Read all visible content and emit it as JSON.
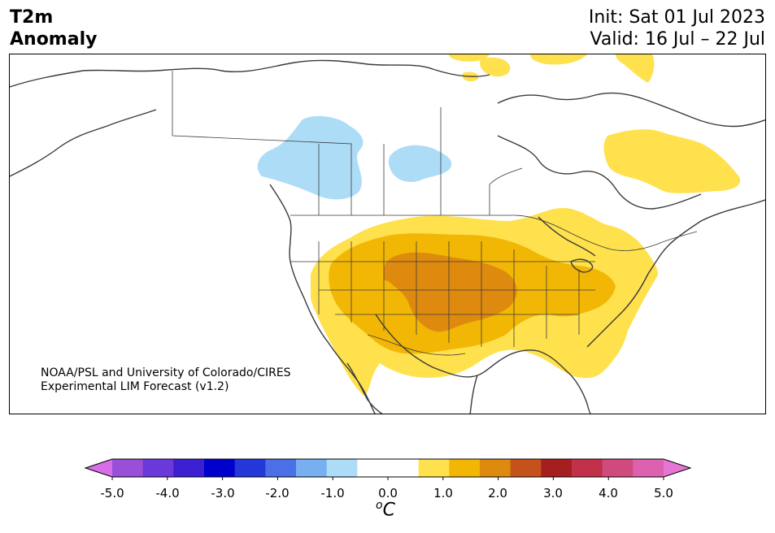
{
  "title": {
    "line1": "T2m",
    "line2": "Anomaly"
  },
  "dates": {
    "init": "Init: Sat 01 Jul 2023",
    "valid": "Valid: 16 Jul – 22 Jul"
  },
  "credit": {
    "line1": "NOAA/PSL and University of Colorado/CIRES",
    "line2": "Experimental LIM Forecast (v1.2)"
  },
  "colorbar": {
    "colors": [
      "#d66fe7",
      "#9a4fd8",
      "#6b38d9",
      "#3b1fd0",
      "#0000cc",
      "#2438d9",
      "#4a6fe6",
      "#78aff0",
      "#addcf7",
      "#ffffff",
      "#ffffff",
      "#ffe14d",
      "#f2b705",
      "#de8a0f",
      "#c4521a",
      "#a61f1f",
      "#c23049",
      "#cf4a7d",
      "#dc62b0",
      "#e675d6"
    ],
    "ticks": [
      "-5.0",
      "-4.0",
      "-3.0",
      "-2.0",
      "-1.0",
      "0.0",
      "1.0",
      "2.0",
      "3.0",
      "4.0",
      "5.0"
    ],
    "unit_base": "C",
    "unit_sup": "o"
  },
  "map_colors": {
    "light_blue": "#addcf7",
    "yellow": "#ffe14d",
    "gold": "#f2b705",
    "orange": "#de8a0f",
    "line": "#3a3a3a"
  }
}
